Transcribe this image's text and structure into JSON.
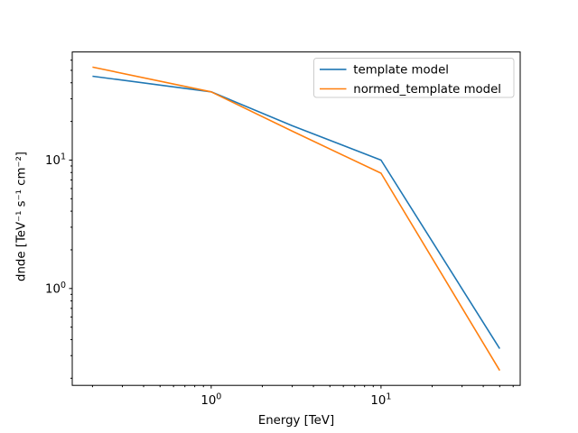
{
  "figure": {
    "background_color": "#ffffff"
  },
  "chart_data": {
    "type": "line",
    "title": "",
    "xlabel": "Energy [TeV]",
    "ylabel": "dnde [TeV⁻¹ s⁻¹ cm⁻²]",
    "xscale": "log",
    "yscale": "log",
    "xlim": [
      0.152,
      66
    ],
    "ylim": [
      0.176,
      69.5
    ],
    "grid": false,
    "legend_position": "upper right",
    "x_major_ticks": [
      1,
      10
    ],
    "x_tick_labels": [
      "10⁰",
      "10¹"
    ],
    "y_major_ticks": [
      1,
      10
    ],
    "y_tick_labels": [
      "10⁰",
      "10¹"
    ],
    "x": [
      0.2,
      1,
      3,
      10,
      50
    ],
    "series": [
      {
        "name": "template model",
        "color": "#1f77b4",
        "values": [
          45,
          34,
          18.5,
          10,
          0.34
        ]
      },
      {
        "name": "normed_template model",
        "color": "#ff7f0e",
        "values": [
          53,
          34,
          16.8,
          7.9,
          0.23
        ]
      }
    ]
  }
}
